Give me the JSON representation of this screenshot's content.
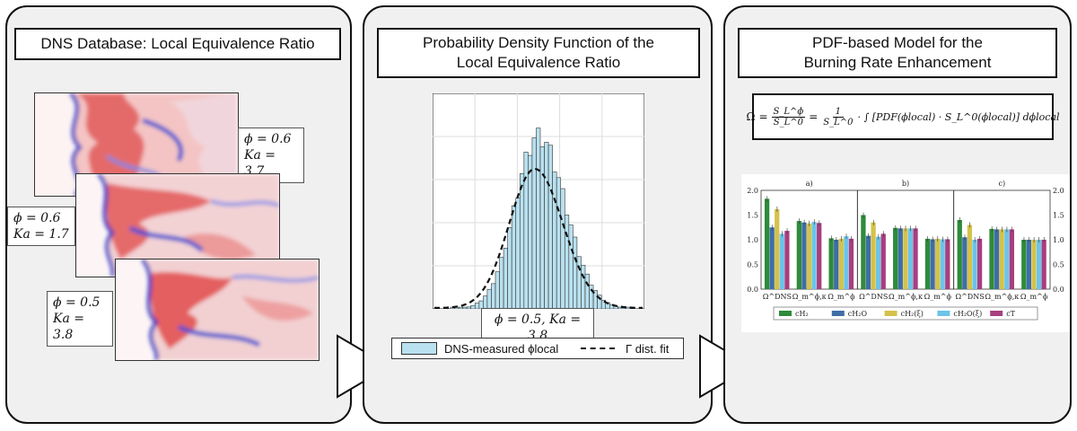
{
  "panels": [
    {
      "title_lines": [
        "DNS Database: Local Equivalence Ratio"
      ]
    },
    {
      "title_lines": [
        "Probability Density Function of the",
        "Local Equivalence Ratio"
      ]
    },
    {
      "title_lines": [
        "PDF-based Model for the",
        "Burning Rate Enhancement"
      ]
    }
  ],
  "snapshots": [
    {
      "phi_label": "ϕ = 0.6",
      "ka_label": "Ka = 3.7"
    },
    {
      "phi_label": "ϕ = 0.6",
      "ka_label": "Ka = 1.7"
    },
    {
      "phi_label": "ϕ = 0.5",
      "ka_label": "Ka = 3.8"
    }
  ],
  "histogram": {
    "caption": "ϕ = 0.5, Ka = 3,8",
    "legend": {
      "bars": "DNS-measured ϕlocal",
      "fit": "Γ dist. fit"
    }
  },
  "equation": {
    "omega": "Ω",
    "eq1": "=",
    "num": "S_L^ϕ",
    "den": "S_L^0",
    "eq2": "=",
    "one": "1",
    "den2": "S_L^0",
    "rest": "· ∫ [PDF(ϕlocal) · S_L^0(ϕlocal)] dϕlocal"
  },
  "chart_data": {
    "type": "bar",
    "subplots": [
      {
        "label": "a)",
        "categories": [
          "Ω^DNS",
          "Ω_m^ϕ,κ",
          "Ω_m^ϕ"
        ],
        "series": [
          {
            "name": "c_H2",
            "values": [
              1.83,
              1.38,
              1.03
            ]
          },
          {
            "name": "c_H2O",
            "values": [
              1.25,
              1.35,
              1.0
            ]
          },
          {
            "name": "c_H2(ξ)",
            "values": [
              1.62,
              1.33,
              1.02
            ]
          },
          {
            "name": "c_H2O(ξ)",
            "values": [
              1.12,
              1.36,
              1.07
            ]
          },
          {
            "name": "c_T",
            "values": [
              1.18,
              1.34,
              1.02
            ]
          }
        ]
      },
      {
        "label": "b)",
        "categories": [
          "Ω^DNS",
          "Ω_m^ϕ,κ",
          "Ω_m^ϕ"
        ],
        "series": [
          {
            "name": "c_H2",
            "values": [
              1.5,
              1.24,
              1.02
            ]
          },
          {
            "name": "c_H2O",
            "values": [
              1.08,
              1.23,
              1.01
            ]
          },
          {
            "name": "c_H2(ξ)",
            "values": [
              1.35,
              1.23,
              1.02
            ]
          },
          {
            "name": "c_H2O(ξ)",
            "values": [
              1.06,
              1.23,
              1.01
            ]
          },
          {
            "name": "c_T",
            "values": [
              1.12,
              1.23,
              1.01
            ]
          }
        ]
      },
      {
        "label": "c)",
        "categories": [
          "Ω^DNS",
          "Ω_m^ϕ,κ",
          "Ω_m^ϕ"
        ],
        "series": [
          {
            "name": "c_H2",
            "values": [
              1.4,
              1.22,
              1.0
            ]
          },
          {
            "name": "c_H2O",
            "values": [
              1.05,
              1.21,
              1.0
            ]
          },
          {
            "name": "c_H2(ξ)",
            "values": [
              1.3,
              1.21,
              1.0
            ]
          },
          {
            "name": "c_H2O(ξ)",
            "values": [
              1.0,
              1.21,
              1.0
            ]
          },
          {
            "name": "c_T",
            "values": [
              1.02,
              1.21,
              1.0
            ]
          }
        ]
      }
    ],
    "ylim": [
      0.0,
      2.0
    ],
    "yticks": [
      "0.0",
      "0.5",
      "1.0",
      "1.5",
      "2.0"
    ],
    "colors": [
      "#2e8b3a",
      "#3f6ea6",
      "#d4c24a",
      "#6cc4e8",
      "#a83e7e"
    ],
    "legend_labels": [
      "cH₂",
      "cH₂O",
      "cH₂(ξ)",
      "cH₂O(ξ)",
      "cT"
    ],
    "legend": "bottom"
  }
}
